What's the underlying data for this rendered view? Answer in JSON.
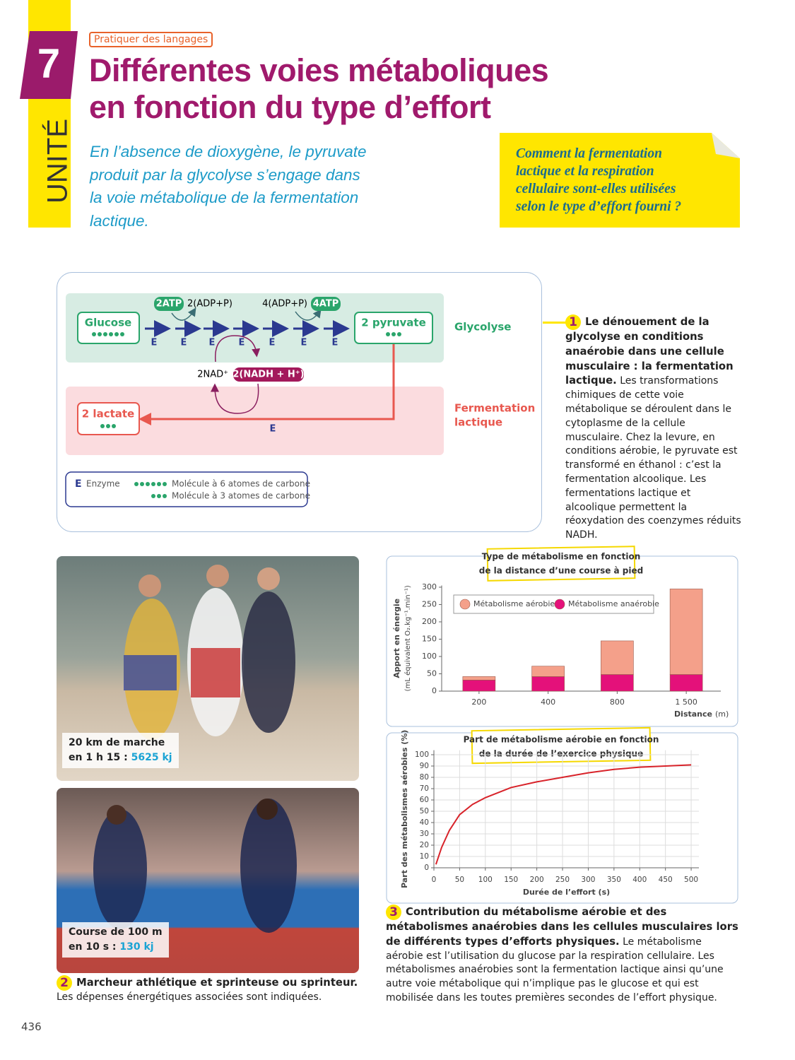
{
  "header": {
    "unit_label": "UNITÉ",
    "unit_number": "7",
    "tag": "Pratiquer des langages",
    "title": [
      "Différentes voies métaboliques",
      "en fonction du type d’effort"
    ]
  },
  "intro": [
    "En l’absence de dioxygène, le pyruvate",
    "produit par la glycolyse s’engage dans",
    "la voie métabolique de la fermentation",
    "lactique."
  ],
  "question": [
    "Comment la fermentation",
    "lactique et la respiration",
    "cellulaire sont-elles utilisées",
    "selon le type d’effort fourni ?"
  ],
  "diagram": {
    "glucose": "Glucose",
    "pyruvate": "2 pyruvate",
    "lactate": "2 lactate",
    "atp_in": "2ATP",
    "adp_in": "2(ADP+P)",
    "adp_out": "4(ADP+P)",
    "atp_out": "4ATP",
    "nad": "2NAD⁺",
    "nadh": "2(NADH + H⁺)",
    "enzymes": [
      "E",
      "E",
      "E",
      "E",
      "E",
      "E",
      "E",
      "E"
    ],
    "glycolysis": "Glycolyse",
    "fermentation": [
      "Fermentation",
      "lactique"
    ],
    "legend": {
      "enzyme_symbol": "E",
      "enzyme": "Enzyme",
      "c6": "Molécule à 6 atomes de carbone",
      "c3": "Molécule à 3 atomes de carbone"
    }
  },
  "doc1": {
    "number": "1",
    "heading": "Le dénouement de la glycolyse en conditions anaérobie dans une cellule musculaire : la fermentation lactique.",
    "text": "Les transformations chimiques de cette voie métabolique se déroulent dans le cytoplasme de la cellule musculaire. Chez la levure, en conditions aérobie, le pyruvate est transformé en éthanol : c’est la fermentation alcoolique. Les fermentations lactique et alcoolique permettent la réoxydation des coenzymes réduits NADH."
  },
  "doc2": {
    "photos": [
      {
        "caption": [
          "20 km de marche",
          "en 1 h 15 :"
        ],
        "energy": "5625 kj"
      },
      {
        "caption": [
          "Course de 100 m",
          "en 10 s :"
        ],
        "energy": "130 kj"
      }
    ],
    "number": "2",
    "heading": "Marcheur athlétique et sprinteuse ou sprinteur.",
    "text": "Les dépenses énergétiques associées sont indiquées."
  },
  "doc3": {
    "number": "3",
    "heading": "Contribution du métabolisme aérobie et des métabolismes anaérobies dans les cellules musculaires lors de différents types d’efforts physiques.",
    "text": "Le métabolisme aérobie est l’utilisation du glucose par la respiration cellulaire. Les métabolismes anaérobies sont la fermentation lactique ainsi qu’une autre voie métabolique qui n’implique pas le glucose et qui est mobilisée dans les toutes premières secondes de l’effort physique."
  },
  "page_number": "436",
  "chart_data": [
    {
      "type": "bar",
      "stacked": true,
      "title": [
        "Type de métabolisme en fonction",
        "de la distance d’une course à pied"
      ],
      "ylabel": [
        "Apport en énergie",
        "(mL équivalent O₂.kg⁻¹.min⁻¹)"
      ],
      "xlabel": "Distance",
      "x_unit": "(m)",
      "categories": [
        "200",
        "400",
        "800",
        "1 500"
      ],
      "series": [
        {
          "name": "Métabolisme aérobie",
          "color": "#f4a08a",
          "values": [
            10,
            30,
            97,
            247
          ]
        },
        {
          "name": "Métabolisme anaérobie",
          "color": "#e4117a",
          "values": [
            32,
            42,
            48,
            48
          ]
        }
      ],
      "ylim": [
        0,
        305
      ],
      "yticks": [
        0,
        50,
        100,
        150,
        200,
        250,
        300
      ],
      "grid": false
    },
    {
      "type": "line",
      "title": [
        "Part de métabolisme aérobie en fonction",
        "de la durée de l’exercice physique"
      ],
      "ylabel": "Part des métabolismes aérobies (%)",
      "xlabel": "Durée de l’effort (s)",
      "x": [
        4,
        15,
        30,
        50,
        75,
        100,
        150,
        200,
        250,
        300,
        350,
        400,
        450,
        500
      ],
      "values": [
        3,
        18,
        33,
        47,
        56,
        62,
        71,
        76,
        80,
        84,
        87,
        89,
        90,
        91
      ],
      "color": "#d8232a",
      "xlim": [
        0,
        515
      ],
      "xticks": [
        0,
        50,
        100,
        150,
        200,
        250,
        300,
        350,
        400,
        450,
        500
      ],
      "ylim": [
        0,
        104
      ],
      "yticks": [
        0,
        10,
        20,
        30,
        40,
        50,
        60,
        70,
        80,
        90,
        100
      ],
      "grid": true
    }
  ]
}
